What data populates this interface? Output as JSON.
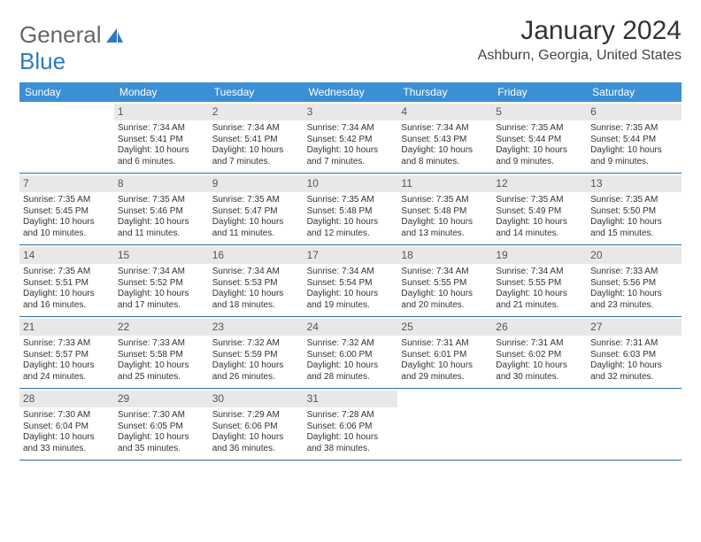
{
  "logo": {
    "text1": "General",
    "text2": "Blue"
  },
  "title": "January 2024",
  "location": "Ashburn, Georgia, United States",
  "colors": {
    "header_bg": "#3b8fd4",
    "header_text": "#ffffff",
    "daynum_bg": "#e8e8e8",
    "week_border": "#2b6ca3",
    "logo_gray": "#666666",
    "logo_blue": "#2b7bbf"
  },
  "day_labels": [
    "Sunday",
    "Monday",
    "Tuesday",
    "Wednesday",
    "Thursday",
    "Friday",
    "Saturday"
  ],
  "first_weekday": 1,
  "days": [
    {
      "n": 1,
      "sunrise": "7:34 AM",
      "sunset": "5:41 PM",
      "daylight": "10 hours and 6 minutes."
    },
    {
      "n": 2,
      "sunrise": "7:34 AM",
      "sunset": "5:41 PM",
      "daylight": "10 hours and 7 minutes."
    },
    {
      "n": 3,
      "sunrise": "7:34 AM",
      "sunset": "5:42 PM",
      "daylight": "10 hours and 7 minutes."
    },
    {
      "n": 4,
      "sunrise": "7:34 AM",
      "sunset": "5:43 PM",
      "daylight": "10 hours and 8 minutes."
    },
    {
      "n": 5,
      "sunrise": "7:35 AM",
      "sunset": "5:44 PM",
      "daylight": "10 hours and 9 minutes."
    },
    {
      "n": 6,
      "sunrise": "7:35 AM",
      "sunset": "5:44 PM",
      "daylight": "10 hours and 9 minutes."
    },
    {
      "n": 7,
      "sunrise": "7:35 AM",
      "sunset": "5:45 PM",
      "daylight": "10 hours and 10 minutes."
    },
    {
      "n": 8,
      "sunrise": "7:35 AM",
      "sunset": "5:46 PM",
      "daylight": "10 hours and 11 minutes."
    },
    {
      "n": 9,
      "sunrise": "7:35 AM",
      "sunset": "5:47 PM",
      "daylight": "10 hours and 11 minutes."
    },
    {
      "n": 10,
      "sunrise": "7:35 AM",
      "sunset": "5:48 PM",
      "daylight": "10 hours and 12 minutes."
    },
    {
      "n": 11,
      "sunrise": "7:35 AM",
      "sunset": "5:48 PM",
      "daylight": "10 hours and 13 minutes."
    },
    {
      "n": 12,
      "sunrise": "7:35 AM",
      "sunset": "5:49 PM",
      "daylight": "10 hours and 14 minutes."
    },
    {
      "n": 13,
      "sunrise": "7:35 AM",
      "sunset": "5:50 PM",
      "daylight": "10 hours and 15 minutes."
    },
    {
      "n": 14,
      "sunrise": "7:35 AM",
      "sunset": "5:51 PM",
      "daylight": "10 hours and 16 minutes."
    },
    {
      "n": 15,
      "sunrise": "7:34 AM",
      "sunset": "5:52 PM",
      "daylight": "10 hours and 17 minutes."
    },
    {
      "n": 16,
      "sunrise": "7:34 AM",
      "sunset": "5:53 PM",
      "daylight": "10 hours and 18 minutes."
    },
    {
      "n": 17,
      "sunrise": "7:34 AM",
      "sunset": "5:54 PM",
      "daylight": "10 hours and 19 minutes."
    },
    {
      "n": 18,
      "sunrise": "7:34 AM",
      "sunset": "5:55 PM",
      "daylight": "10 hours and 20 minutes."
    },
    {
      "n": 19,
      "sunrise": "7:34 AM",
      "sunset": "5:55 PM",
      "daylight": "10 hours and 21 minutes."
    },
    {
      "n": 20,
      "sunrise": "7:33 AM",
      "sunset": "5:56 PM",
      "daylight": "10 hours and 23 minutes."
    },
    {
      "n": 21,
      "sunrise": "7:33 AM",
      "sunset": "5:57 PM",
      "daylight": "10 hours and 24 minutes."
    },
    {
      "n": 22,
      "sunrise": "7:33 AM",
      "sunset": "5:58 PM",
      "daylight": "10 hours and 25 minutes."
    },
    {
      "n": 23,
      "sunrise": "7:32 AM",
      "sunset": "5:59 PM",
      "daylight": "10 hours and 26 minutes."
    },
    {
      "n": 24,
      "sunrise": "7:32 AM",
      "sunset": "6:00 PM",
      "daylight": "10 hours and 28 minutes."
    },
    {
      "n": 25,
      "sunrise": "7:31 AM",
      "sunset": "6:01 PM",
      "daylight": "10 hours and 29 minutes."
    },
    {
      "n": 26,
      "sunrise": "7:31 AM",
      "sunset": "6:02 PM",
      "daylight": "10 hours and 30 minutes."
    },
    {
      "n": 27,
      "sunrise": "7:31 AM",
      "sunset": "6:03 PM",
      "daylight": "10 hours and 32 minutes."
    },
    {
      "n": 28,
      "sunrise": "7:30 AM",
      "sunset": "6:04 PM",
      "daylight": "10 hours and 33 minutes."
    },
    {
      "n": 29,
      "sunrise": "7:30 AM",
      "sunset": "6:05 PM",
      "daylight": "10 hours and 35 minutes."
    },
    {
      "n": 30,
      "sunrise": "7:29 AM",
      "sunset": "6:06 PM",
      "daylight": "10 hours and 36 minutes."
    },
    {
      "n": 31,
      "sunrise": "7:28 AM",
      "sunset": "6:06 PM",
      "daylight": "10 hours and 38 minutes."
    }
  ]
}
